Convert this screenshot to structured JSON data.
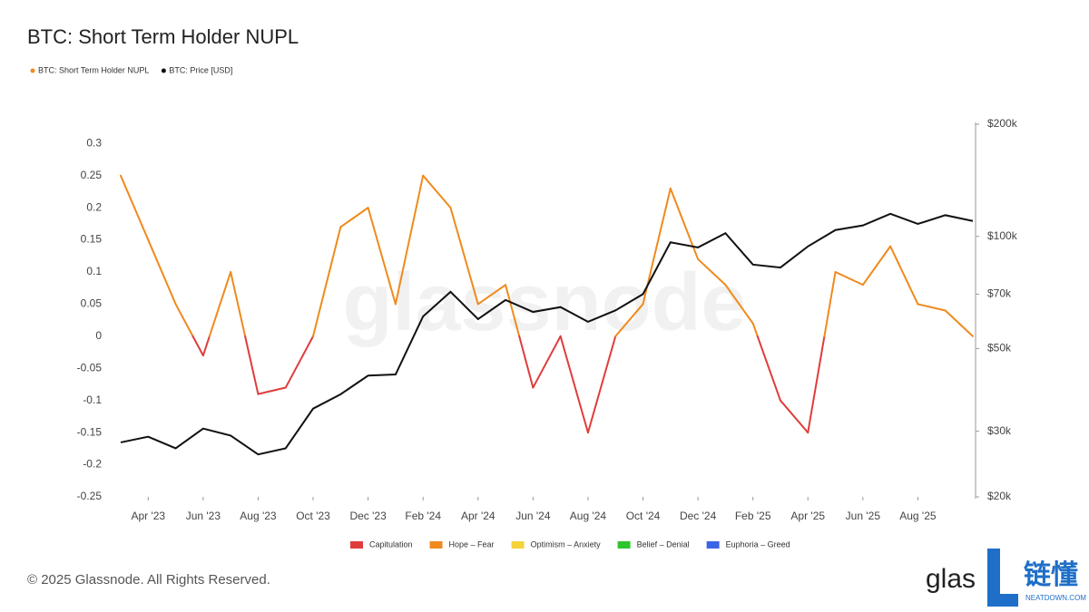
{
  "chart_data": {
    "type": "line",
    "title": "BTC: Short Term Holder NUPL",
    "watermark": "glassnode",
    "x": [
      "2023-03",
      "2023-04",
      "2023-05",
      "2023-06",
      "2023-07",
      "2023-08",
      "2023-09",
      "2023-10",
      "2023-11",
      "2023-12",
      "2024-01",
      "2024-02",
      "2024-03",
      "2024-04",
      "2024-05",
      "2024-06",
      "2024-07",
      "2024-08",
      "2024-09",
      "2024-10",
      "2024-11",
      "2024-12",
      "2025-01",
      "2025-02",
      "2025-03",
      "2025-04",
      "2025-05",
      "2025-06",
      "2025-07",
      "2025-08",
      "2025-09",
      "2025-10"
    ],
    "xlim": [
      "2023-03",
      "2025-10"
    ],
    "xticks": [
      {
        "value": "2023-04",
        "label": "Apr '23"
      },
      {
        "value": "2023-06",
        "label": "Jun '23"
      },
      {
        "value": "2023-08",
        "label": "Aug '23"
      },
      {
        "value": "2023-10",
        "label": "Oct '23"
      },
      {
        "value": "2023-12",
        "label": "Dec '23"
      },
      {
        "value": "2024-02",
        "label": "Feb '24"
      },
      {
        "value": "2024-04",
        "label": "Apr '24"
      },
      {
        "value": "2024-06",
        "label": "Jun '24"
      },
      {
        "value": "2024-08",
        "label": "Aug '24"
      },
      {
        "value": "2024-10",
        "label": "Oct '24"
      },
      {
        "value": "2024-12",
        "label": "Dec '24"
      },
      {
        "value": "2025-02",
        "label": "Feb '25"
      },
      {
        "value": "2025-04",
        "label": "Apr '25"
      },
      {
        "value": "2025-06",
        "label": "Jun '25"
      },
      {
        "value": "2025-08",
        "label": "Aug '25"
      }
    ],
    "ylim": [
      -0.25,
      0.33
    ],
    "yticks": [
      -0.25,
      -0.2,
      -0.15,
      -0.1,
      -0.05,
      0,
      0.05,
      0.1,
      0.15,
      0.2,
      0.25,
      0.3
    ],
    "y2lim": [
      20000,
      200000
    ],
    "y2log": true,
    "y2ticks": [
      {
        "value": 20000,
        "label": "$20k"
      },
      {
        "value": 30000,
        "label": "$30k"
      },
      {
        "value": 50000,
        "label": "$50k"
      },
      {
        "value": 70000,
        "label": "$70k"
      },
      {
        "value": 100000,
        "label": "$100k"
      },
      {
        "value": 200000,
        "label": "$200k"
      }
    ],
    "grid": false,
    "series": [
      {
        "name": "BTC: Short Term Holder NUPL",
        "color": "#f08a1c",
        "zoned": true,
        "values": [
          0.25,
          0.15,
          0.05,
          -0.03,
          0.1,
          -0.09,
          -0.08,
          0.0,
          0.17,
          0.2,
          0.05,
          0.25,
          0.2,
          0.05,
          0.08,
          -0.08,
          0.0,
          -0.15,
          0.0,
          0.05,
          0.23,
          0.12,
          0.08,
          0.02,
          -0.1,
          -0.15,
          0.1,
          0.08,
          0.14,
          0.05,
          0.04,
          0.0
        ]
      },
      {
        "name": "BTC: Price [USD]",
        "color": "#111111",
        "axis": "y2",
        "values": [
          28000,
          29000,
          27000,
          30500,
          29200,
          26000,
          27000,
          34500,
          37700,
          42300,
          42600,
          61000,
          71000,
          60000,
          67500,
          62700,
          64600,
          59000,
          63300,
          70000,
          96400,
          93400,
          102000,
          84000,
          82500,
          94000,
          104000,
          107000,
          115000,
          108000,
          114000,
          110000
        ]
      }
    ],
    "zone_bounds": [
      0,
      0.25,
      0.5,
      0.75
    ],
    "zones": [
      {
        "name": "Capitulation",
        "color": "#e03c3c"
      },
      {
        "name": "Hope – Fear",
        "color": "#f08a1c"
      },
      {
        "name": "Optimism – Anxiety",
        "color": "#f5d33a"
      },
      {
        "name": "Belief – Denial",
        "color": "#2ec42e"
      },
      {
        "name": "Euphoria – Greed",
        "color": "#3c64e6"
      }
    ],
    "footer": {
      "copyright": "© 2025 Glassnode. All Rights Reserved.",
      "logo": "glas",
      "brand": "链懂",
      "brand_url": "NEATDOWN.COM"
    }
  }
}
